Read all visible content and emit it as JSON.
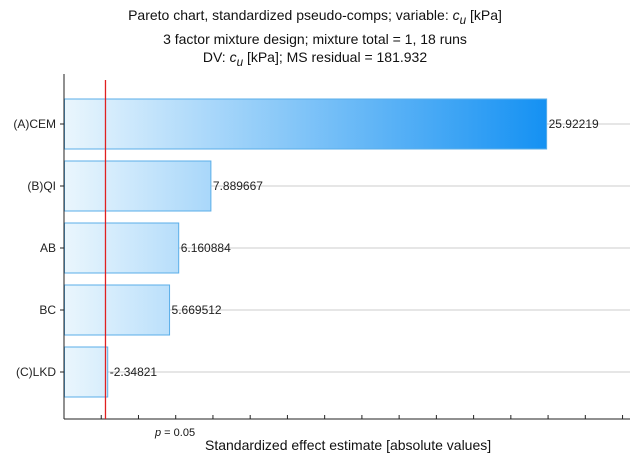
{
  "chart_data": {
    "type": "bar",
    "orientation": "horizontal",
    "title_lines": [
      {
        "before": "Pareto chart, standardized pseudo-comps; variable: ",
        "symbol": "c",
        "subscript": "u",
        "after": " [kPa]"
      },
      {
        "before": "3 factor mixture design; mixture total = 1, 18 runs",
        "symbol": "",
        "subscript": "",
        "after": ""
      },
      {
        "before": "DV: ",
        "symbol": "c",
        "subscript": "u",
        "after": " [kPa]; MS residual = 181.932"
      }
    ],
    "xlabel": "Standardized effect estimate [absolute values]",
    "ylabel": "",
    "xlim": [
      0,
      30.4
    ],
    "categories": [
      "(A)CEM",
      "(B)QI",
      "AB",
      "BC",
      "(C)LKD"
    ],
    "values": [
      25.92219,
      7.889667,
      6.160884,
      5.669512,
      -2.34821
    ],
    "value_labels": [
      "25.92219",
      "7.889667",
      "6.160884",
      "5.669512",
      "-2.34821"
    ],
    "reference_line": {
      "value": 2.228,
      "label_symbol": "p",
      "label_rest": " = 0.05",
      "color": "#e02020"
    },
    "grid": "horizontal lines at bar centers",
    "colors": {
      "bar_light": "#eaf6fd",
      "bar_dark": "#0a8cf2",
      "bar_border": "#5aaee8",
      "axis": "#222222",
      "gridline": "#cccccc"
    }
  }
}
